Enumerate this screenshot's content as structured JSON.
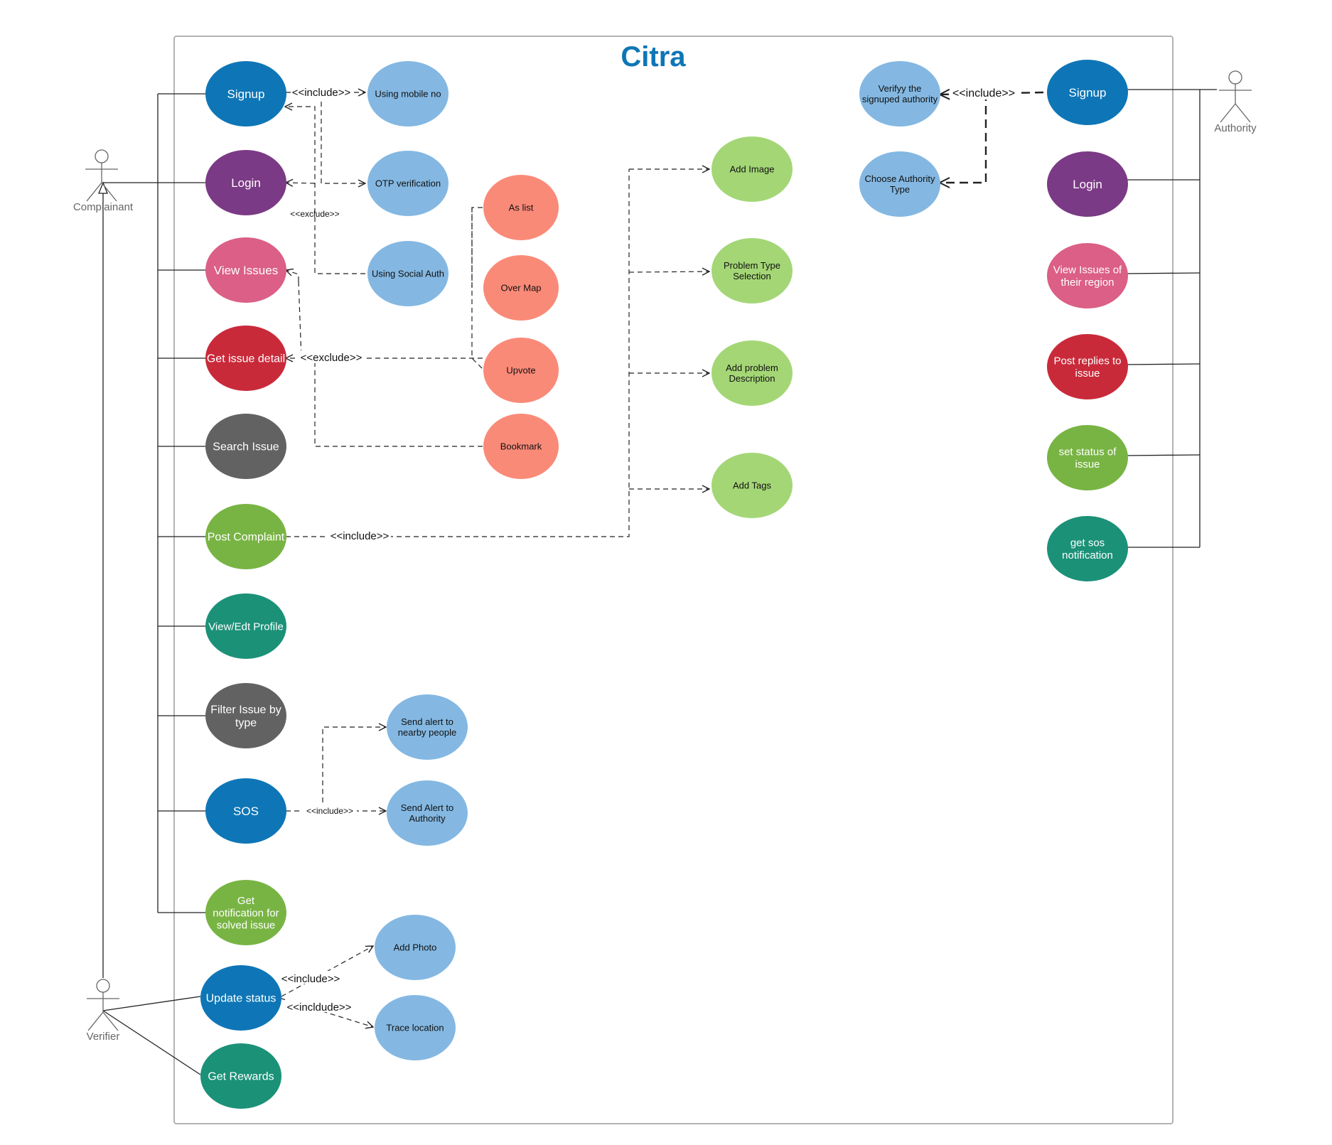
{
  "title": "Citra",
  "actors": {
    "complainant": "Complainant",
    "verifier": "Verifier",
    "authority": "Authority"
  },
  "usecases": [
    {
      "id": "c_signup",
      "lines": [
        "Signup"
      ],
      "fill": "#0e76b6",
      "text": "light"
    },
    {
      "id": "c_login",
      "lines": [
        "Login"
      ],
      "fill": "#7b3a85",
      "text": "light"
    },
    {
      "id": "c_view",
      "lines": [
        "View Issues"
      ],
      "fill": "#db5f86",
      "text": "light"
    },
    {
      "id": "c_detail",
      "lines": [
        "Get issue detail"
      ],
      "fill": "#c92a3a",
      "text": "light"
    },
    {
      "id": "c_search",
      "lines": [
        "Search Issue"
      ],
      "fill": "#626262",
      "text": "light"
    },
    {
      "id": "c_post",
      "lines": [
        "Post Complaint"
      ],
      "fill": "#78b443",
      "text": "light"
    },
    {
      "id": "c_profile",
      "lines": [
        "View/Edt Profile"
      ],
      "fill": "#1b9178",
      "text": "light"
    },
    {
      "id": "c_filter",
      "lines": [
        "Filter Issue by",
        "type"
      ],
      "fill": "#626262",
      "text": "light"
    },
    {
      "id": "c_sos",
      "lines": [
        "SOS"
      ],
      "fill": "#0e76b6",
      "text": "light"
    },
    {
      "id": "c_notif",
      "lines": [
        "Get",
        "notification for",
        "solved issue"
      ],
      "fill": "#78b443",
      "text": "light"
    },
    {
      "id": "v_update",
      "lines": [
        "Update status"
      ],
      "fill": "#0e76b6",
      "text": "light"
    },
    {
      "id": "v_rewards",
      "lines": [
        "Get Rewards"
      ],
      "fill": "#1b9178",
      "text": "light"
    },
    {
      "id": "mobile",
      "lines": [
        "Using mobile no"
      ],
      "fill": "#84b8e2",
      "text": "dark"
    },
    {
      "id": "otp",
      "lines": [
        "OTP verification"
      ],
      "fill": "#84b8e2",
      "text": "dark"
    },
    {
      "id": "social",
      "lines": [
        "Using Social Auth"
      ],
      "fill": "#84b8e2",
      "text": "dark"
    },
    {
      "id": "aslist",
      "lines": [
        "As list"
      ],
      "fill": "#fa8a78",
      "text": "dark"
    },
    {
      "id": "overmap",
      "lines": [
        "Over Map"
      ],
      "fill": "#fa8a78",
      "text": "dark"
    },
    {
      "id": "upvote",
      "lines": [
        "Upvote"
      ],
      "fill": "#fa8a78",
      "text": "dark"
    },
    {
      "id": "bookmark",
      "lines": [
        "Bookmark"
      ],
      "fill": "#fa8a78",
      "text": "dark"
    },
    {
      "id": "addimage",
      "lines": [
        "Add Image"
      ],
      "fill": "#a4d676",
      "text": "dark"
    },
    {
      "id": "ptype",
      "lines": [
        "Problem Type",
        "Selection"
      ],
      "fill": "#a4d676",
      "text": "dark"
    },
    {
      "id": "pdesc",
      "lines": [
        "Add problem",
        "Description"
      ],
      "fill": "#a4d676",
      "text": "dark"
    },
    {
      "id": "tags",
      "lines": [
        "Add  Tags"
      ],
      "fill": "#a4d676",
      "text": "dark"
    },
    {
      "id": "alert_people",
      "lines": [
        "Send alert to",
        "nearby people"
      ],
      "fill": "#84b8e2",
      "text": "dark"
    },
    {
      "id": "alert_auth",
      "lines": [
        "Send Alert to",
        "Authority"
      ],
      "fill": "#84b8e2",
      "text": "dark"
    },
    {
      "id": "addphoto",
      "lines": [
        "Add Photo"
      ],
      "fill": "#84b8e2",
      "text": "dark"
    },
    {
      "id": "trace",
      "lines": [
        "Trace location"
      ],
      "fill": "#84b8e2",
      "text": "dark"
    },
    {
      "id": "verify",
      "lines": [
        "Verifyy the",
        "signuped authority"
      ],
      "fill": "#84b8e2",
      "text": "dark"
    },
    {
      "id": "choose",
      "lines": [
        "Choose Authority",
        "Type"
      ],
      "fill": "#84b8e2",
      "text": "dark"
    },
    {
      "id": "a_signup",
      "lines": [
        "Signup"
      ],
      "fill": "#0e76b6",
      "text": "light"
    },
    {
      "id": "a_login",
      "lines": [
        "Login"
      ],
      "fill": "#7b3a85",
      "text": "light"
    },
    {
      "id": "a_view",
      "lines": [
        "View Issues of",
        "their region"
      ],
      "fill": "#db5f86",
      "text": "light"
    },
    {
      "id": "a_reply",
      "lines": [
        "Post replies to",
        "issue"
      ],
      "fill": "#c92a3a",
      "text": "light"
    },
    {
      "id": "a_status",
      "lines": [
        "set status of",
        "issue"
      ],
      "fill": "#78b443",
      "text": "light"
    },
    {
      "id": "a_sos",
      "lines": [
        "get sos",
        "notification"
      ],
      "fill": "#1b9178",
      "text": "light"
    }
  ],
  "relations": {
    "signup_include": "<<include>>",
    "login_exclude": "<<exclude>>",
    "detail_exclude": "<<exclude>>",
    "post_include": "<<include>>",
    "sos_include": "<<include>>",
    "update_include_photo": "<<include>>",
    "update_include_trace": "<<incldude>>",
    "auth_include": "<<include>>"
  },
  "colors": {
    "title": "#0e76b6",
    "line": "#222222",
    "actor": "#666666",
    "boundary": "#9a9a9a"
  }
}
